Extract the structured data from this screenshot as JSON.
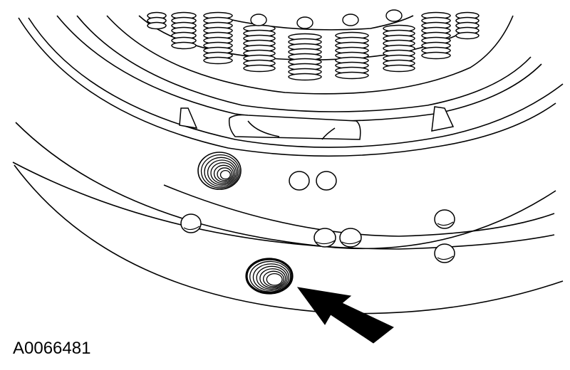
{
  "figure": {
    "id_label": "A0066481",
    "line_color": "#000000",
    "background": "#ffffff"
  }
}
